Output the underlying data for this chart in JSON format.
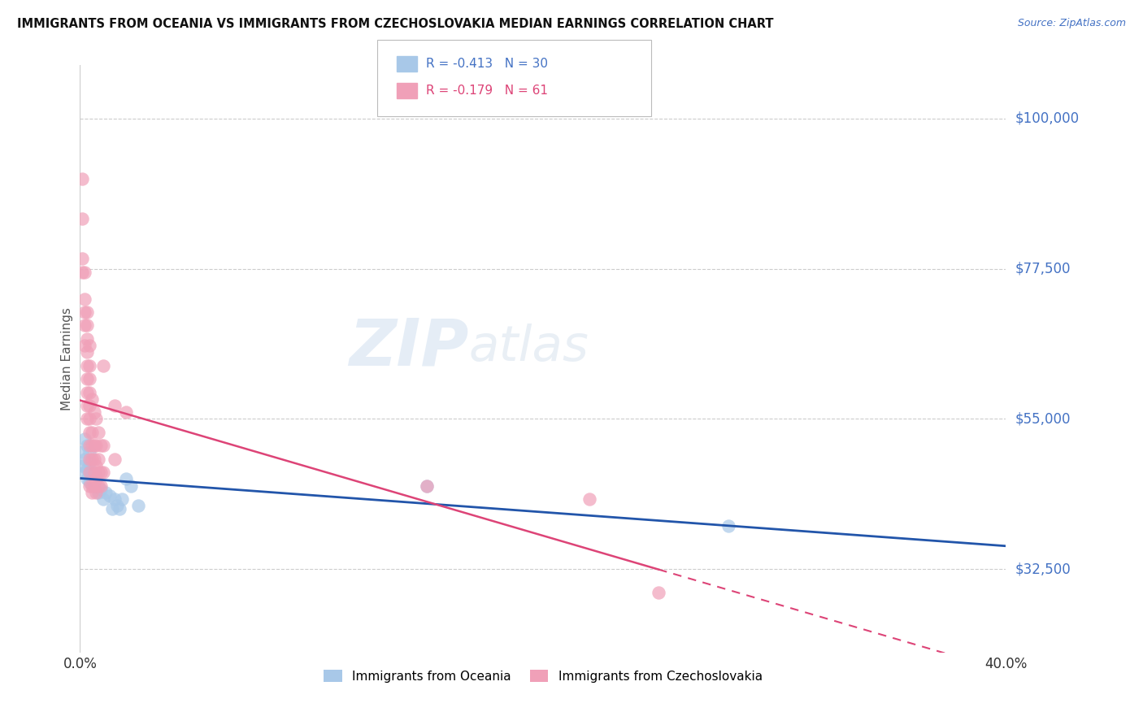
{
  "title": "IMMIGRANTS FROM OCEANIA VS IMMIGRANTS FROM CZECHOSLOVAKIA MEDIAN EARNINGS CORRELATION CHART",
  "source": "Source: ZipAtlas.com",
  "ylabel": "Median Earnings",
  "yticks": [
    32500,
    55000,
    77500,
    100000
  ],
  "ytick_labels": [
    "$32,500",
    "$55,000",
    "$77,500",
    "$100,000"
  ],
  "legend_oceania": "Immigrants from Oceania",
  "legend_czech": "Immigrants from Czechoslovakia",
  "R_oceania": "-0.413",
  "N_oceania": "30",
  "R_czech": "-0.179",
  "N_czech": "61",
  "color_oceania": "#a8c8e8",
  "color_czech": "#f0a0b8",
  "line_color_oceania": "#2255aa",
  "line_color_czech": "#dd4477",
  "background_color": "#ffffff",
  "watermark_zip": "ZIP",
  "watermark_atlas": "atlas",
  "xmin": 0.0,
  "xmax": 0.4,
  "ymin": 20000,
  "ymax": 108000,
  "oceania_points": [
    [
      0.001,
      50000
    ],
    [
      0.001,
      48000
    ],
    [
      0.002,
      52000
    ],
    [
      0.002,
      47000
    ],
    [
      0.002,
      49000
    ],
    [
      0.003,
      46000
    ],
    [
      0.003,
      51000
    ],
    [
      0.003,
      47500
    ],
    [
      0.004,
      48500
    ],
    [
      0.004,
      45500
    ],
    [
      0.004,
      50000
    ],
    [
      0.005,
      47000
    ],
    [
      0.005,
      46000
    ],
    [
      0.006,
      45000
    ],
    [
      0.007,
      46500
    ],
    [
      0.008,
      44000
    ],
    [
      0.009,
      44500
    ],
    [
      0.01,
      43000
    ],
    [
      0.011,
      44000
    ],
    [
      0.013,
      43500
    ],
    [
      0.014,
      41500
    ],
    [
      0.015,
      43000
    ],
    [
      0.016,
      42000
    ],
    [
      0.017,
      41500
    ],
    [
      0.018,
      43000
    ],
    [
      0.02,
      46000
    ],
    [
      0.022,
      45000
    ],
    [
      0.025,
      42000
    ],
    [
      0.15,
      45000
    ],
    [
      0.28,
      39000
    ]
  ],
  "czech_points": [
    [
      0.001,
      91000
    ],
    [
      0.001,
      85000
    ],
    [
      0.001,
      79000
    ],
    [
      0.001,
      77000
    ],
    [
      0.002,
      77000
    ],
    [
      0.002,
      73000
    ],
    [
      0.002,
      71000
    ],
    [
      0.002,
      69000
    ],
    [
      0.002,
      66000
    ],
    [
      0.003,
      71000
    ],
    [
      0.003,
      69000
    ],
    [
      0.003,
      67000
    ],
    [
      0.003,
      65000
    ],
    [
      0.003,
      63000
    ],
    [
      0.003,
      61000
    ],
    [
      0.003,
      59000
    ],
    [
      0.003,
      57000
    ],
    [
      0.003,
      55000
    ],
    [
      0.004,
      66000
    ],
    [
      0.004,
      63000
    ],
    [
      0.004,
      61000
    ],
    [
      0.004,
      59000
    ],
    [
      0.004,
      57000
    ],
    [
      0.004,
      55000
    ],
    [
      0.004,
      53000
    ],
    [
      0.004,
      51000
    ],
    [
      0.004,
      49000
    ],
    [
      0.004,
      47000
    ],
    [
      0.004,
      45000
    ],
    [
      0.005,
      58000
    ],
    [
      0.005,
      53000
    ],
    [
      0.005,
      51000
    ],
    [
      0.005,
      49000
    ],
    [
      0.005,
      45000
    ],
    [
      0.005,
      44000
    ],
    [
      0.006,
      56000
    ],
    [
      0.006,
      51000
    ],
    [
      0.006,
      49000
    ],
    [
      0.006,
      47000
    ],
    [
      0.006,
      45000
    ],
    [
      0.007,
      55000
    ],
    [
      0.007,
      51000
    ],
    [
      0.007,
      48000
    ],
    [
      0.007,
      46000
    ],
    [
      0.007,
      44000
    ],
    [
      0.008,
      53000
    ],
    [
      0.008,
      49000
    ],
    [
      0.008,
      47000
    ],
    [
      0.008,
      45000
    ],
    [
      0.009,
      51000
    ],
    [
      0.009,
      47000
    ],
    [
      0.009,
      45000
    ],
    [
      0.01,
      63000
    ],
    [
      0.01,
      51000
    ],
    [
      0.01,
      47000
    ],
    [
      0.015,
      57000
    ],
    [
      0.015,
      49000
    ],
    [
      0.02,
      56000
    ],
    [
      0.15,
      45000
    ],
    [
      0.22,
      43000
    ],
    [
      0.25,
      29000
    ]
  ]
}
